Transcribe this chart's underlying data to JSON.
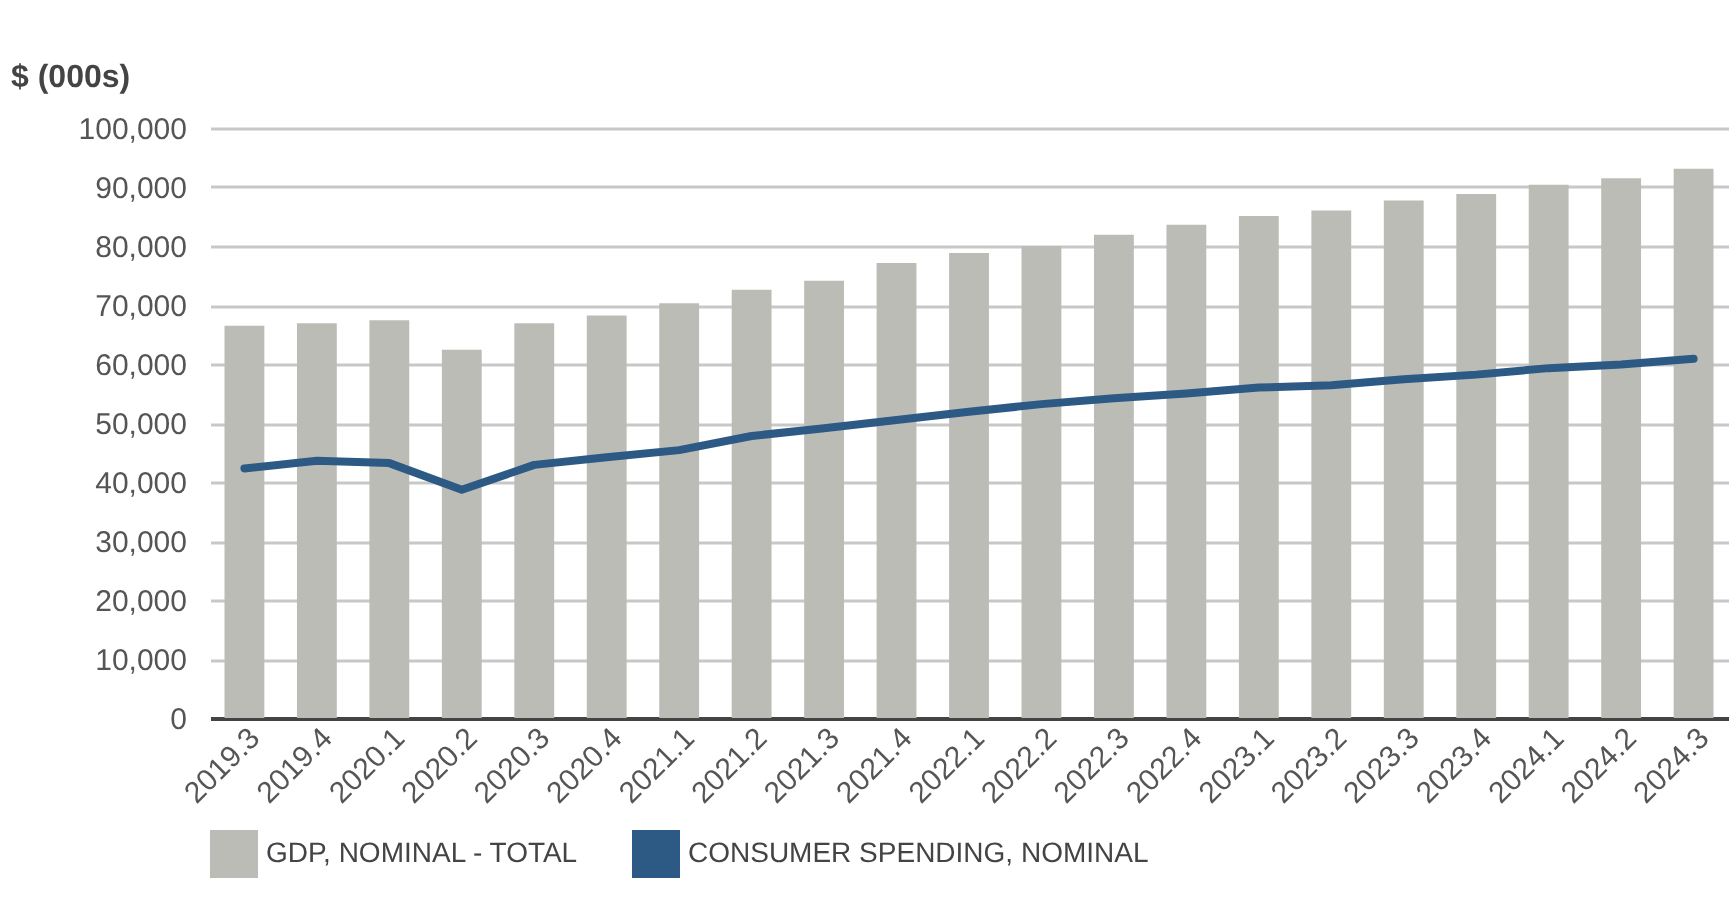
{
  "chart_data": {
    "type": "bar",
    "ylabel": "$ (000s)",
    "categories": [
      "2019.3",
      "2019.4",
      "2020.1",
      "2020.2",
      "2020.3",
      "2020.4",
      "2021.1",
      "2021.2",
      "2021.3",
      "2021.4",
      "2022.1",
      "2022.2",
      "2022.3",
      "2022.4",
      "2023.1",
      "2023.2",
      "2023.3",
      "2023.4",
      "2024.1",
      "2024.2",
      "2024.3"
    ],
    "series": [
      {
        "name": "GDP, NOMINAL - TOTAL",
        "color": "#bcbcb7",
        "values": [
          66500,
          66900,
          67400,
          62400,
          66900,
          68200,
          70300,
          72600,
          74100,
          77100,
          78800,
          80000,
          81900,
          83600,
          85100,
          86000,
          87700,
          88800,
          90400,
          91500,
          93100
        ]
      },
      {
        "name": "CONSUMER SPENDING, NOMINAL",
        "type": "line",
        "color": "#2c5a85",
        "values": [
          42300,
          43600,
          43200,
          38700,
          42900,
          44200,
          45400,
          47800,
          49100,
          50500,
          51900,
          53200,
          54200,
          55000,
          56000,
          56400,
          57400,
          58200,
          59300,
          59900,
          60900
        ]
      }
    ],
    "ylim": [
      0,
      100000
    ],
    "yticks": [
      0,
      {
        "value": 10000,
        "label": "10,000"
      },
      {
        "value": 20000,
        "label": "20,000"
      },
      {
        "value": 30000,
        "label": "30,000"
      },
      {
        "value": 40000,
        "label": "40,000"
      },
      {
        "value": 50000,
        "label": "50,000"
      },
      {
        "value": 60000,
        "label": "60,000"
      },
      {
        "value": 70000,
        "label": "70,000"
      },
      {
        "value": 80000,
        "label": "80,000"
      },
      {
        "value": 90000,
        "label": "90,000"
      },
      {
        "value": 100000,
        "label": "100,000"
      }
    ],
    "grid": "y",
    "legend": "bottom",
    "marker": "none",
    "line_style": "solid"
  }
}
